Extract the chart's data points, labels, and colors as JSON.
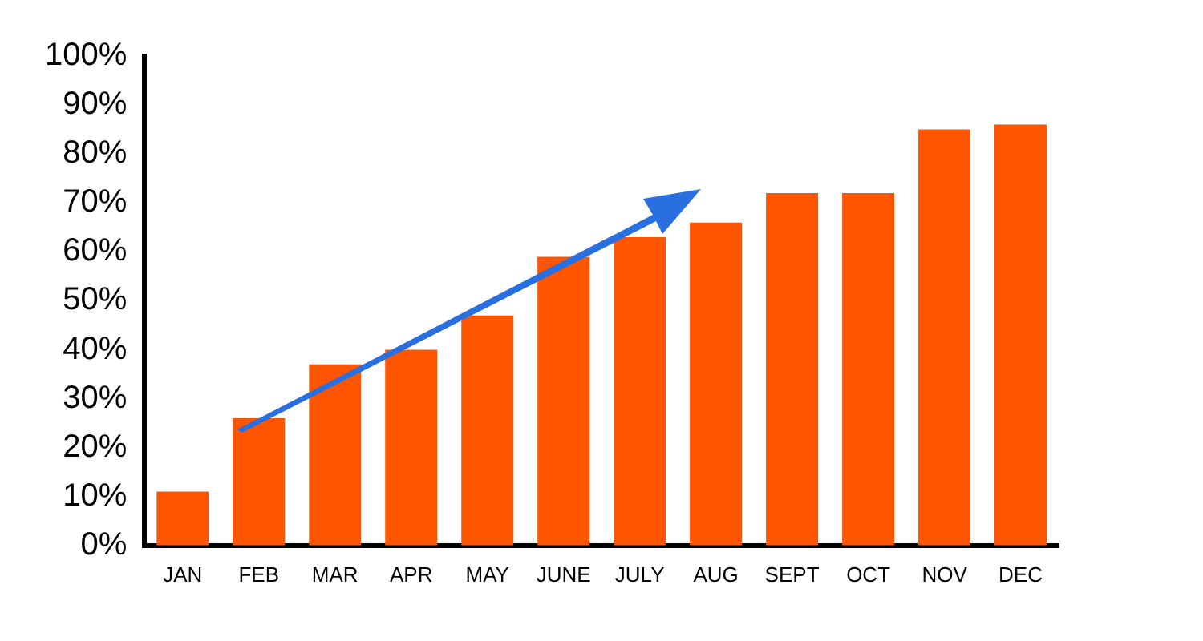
{
  "chart_data": {
    "type": "bar",
    "categories": [
      "JAN",
      "FEB",
      "MAR",
      "APR",
      "MAY",
      "JUNE",
      "JULY",
      "AUG",
      "SEPT",
      "OCT",
      "NOV",
      "DEC"
    ],
    "values": [
      11,
      26,
      37,
      40,
      47,
      59,
      63,
      66,
      72,
      72,
      85,
      86
    ],
    "color": "#ff5500",
    "ylim": [
      0,
      100
    ],
    "yticks": [
      {
        "value": 0,
        "label": "0%"
      },
      {
        "value": 10,
        "label": "10%"
      },
      {
        "value": 20,
        "label": "20%"
      },
      {
        "value": 30,
        "label": "30%"
      },
      {
        "value": 40,
        "label": "40%"
      },
      {
        "value": 50,
        "label": "50%"
      },
      {
        "value": 60,
        "label": "60%"
      },
      {
        "value": 70,
        "label": "70%"
      },
      {
        "value": 80,
        "label": "80%"
      },
      {
        "value": 90,
        "label": "90%"
      },
      {
        "value": 100,
        "label": "100%"
      }
    ],
    "grid": false,
    "legend": false
  }
}
